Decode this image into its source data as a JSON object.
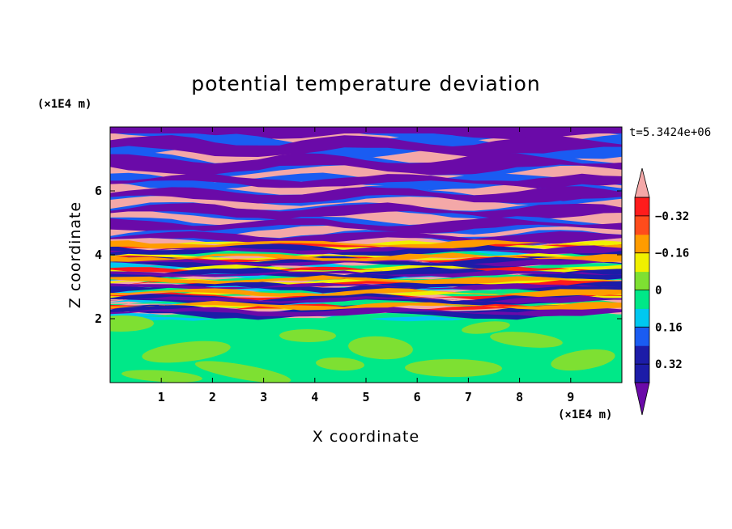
{
  "chart_data": {
    "type": "heatmap",
    "title": "potential temperature deviation",
    "xlabel": "X coordinate",
    "ylabel": "Z coordinate",
    "x_unit": "(×1E4 m)",
    "y_unit": "(×1E4 m)",
    "time_label": "t=5.3424e+06",
    "xlim": [
      0,
      10
    ],
    "ylim": [
      0,
      8
    ],
    "x_ticks": [
      1,
      2,
      3,
      4,
      5,
      6,
      7,
      8,
      9
    ],
    "y_ticks": [
      2,
      4,
      6
    ],
    "colorbar": {
      "levels": [
        -0.4,
        -0.32,
        -0.24,
        -0.16,
        -0.08,
        0,
        0.08,
        0.16,
        0.24,
        0.32,
        0.4
      ],
      "labeled_levels": [
        -0.32,
        -0.16,
        0,
        0.16,
        0.32
      ],
      "labels": [
        "0.32",
        "0.16",
        "0",
        "−0.16",
        "−0.32"
      ],
      "under_color": "#6a0aa8",
      "over_color": "#f4a8a8",
      "colors": [
        "#1c1ca8",
        "#1c1ca8",
        "#1a5cf2",
        "#00c8f0",
        "#00e888",
        "#7ee032",
        "#f0f000",
        "#ff9c00",
        "#ff4c1c",
        "#ff1c1c"
      ]
    },
    "description_regions": {
      "lower_layer_z_range": [
        0,
        2
      ],
      "lower_layer_values": "near 0 (green / light green)",
      "upper_layer_z_range": [
        2,
        8
      ],
      "upper_layer_values": "alternating bands below -0.4 and above 0.4"
    }
  }
}
